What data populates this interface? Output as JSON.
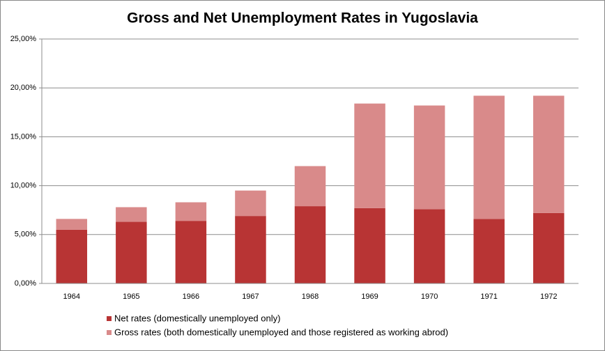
{
  "chart_data": {
    "type": "stacked-bar",
    "title": "Gross and Net Unemployment Rates in Yugoslavia",
    "categories": [
      "1964",
      "1965",
      "1966",
      "1967",
      "1968",
      "1969",
      "1970",
      "1971",
      "1972"
    ],
    "series": [
      {
        "name": "Net rates (domestically unemployed only)",
        "color": "#b83434",
        "values": [
          5.5,
          6.3,
          6.4,
          6.9,
          7.9,
          7.7,
          7.6,
          6.6,
          7.2
        ]
      },
      {
        "name": "Gross rates (both domestically unemployed and those registered as working abrod)",
        "color": "#d98a8a",
        "values": [
          1.1,
          1.5,
          1.9,
          2.6,
          4.1,
          10.7,
          10.6,
          12.6,
          12.0
        ]
      }
    ],
    "ylim": [
      0,
      25
    ],
    "yticks": [
      {
        "value": 0,
        "label": "0,00%"
      },
      {
        "value": 5,
        "label": "5,00%"
      },
      {
        "value": 10,
        "label": "10,00%"
      },
      {
        "value": 15,
        "label": "15,00%"
      },
      {
        "value": 20,
        "label": "20,00%"
      },
      {
        "value": 25,
        "label": "25,00%"
      }
    ],
    "grid": true
  }
}
